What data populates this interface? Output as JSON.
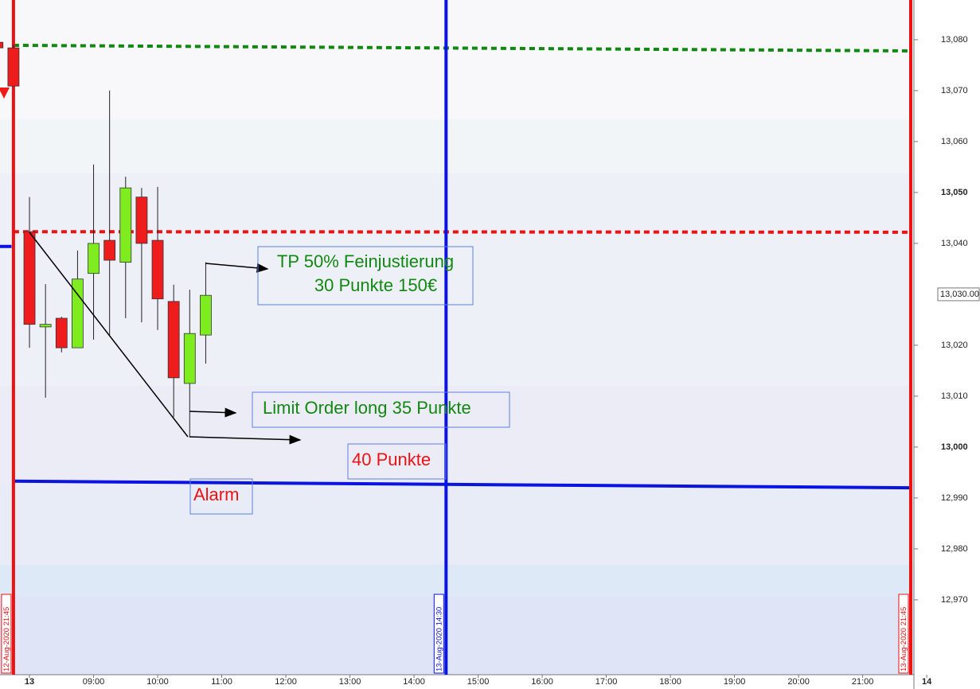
{
  "chart_data": {
    "type": "candlestick",
    "x": [
      7.5,
      7.75,
      8,
      8.25,
      8.5,
      8.75,
      9,
      9.25,
      9.5,
      9.75,
      10,
      10.25,
      10.5,
      10.75
    ],
    "open": [
      13079.5,
      13078.4,
      13042.3,
      13023.6,
      13025.3,
      13019.5,
      13034.1,
      13040.6,
      13036.3,
      13049.1,
      13040.6,
      13028.6,
      13012.5,
      13022.0
    ],
    "high": [
      13080.0,
      13079.0,
      13049.1,
      13032.0,
      13025.6,
      13038.6,
      13055.5,
      13070.0,
      13053.1,
      13050.9,
      13051.1,
      13031.9,
      13030.9,
      13036.3
    ],
    "low": [
      13078.0,
      13070.9,
      13019.5,
      13009.7,
      13018.6,
      13019.5,
      13021.1,
      13022.0,
      13025.3,
      13024.5,
      13023.0,
      13005.9,
      13001.9,
      13016.4
    ],
    "close": [
      13078.4,
      13070.9,
      13024.1,
      13024.1,
      13019.5,
      13033.0,
      13040.0,
      13036.7,
      13050.9,
      13040.0,
      13029.1,
      13013.6,
      13022.3,
      13029.8
    ],
    "up_color": "#7fec1f",
    "down_color": "#ee1c1c",
    "xlim": [
      7.54,
      21.8
    ],
    "ylim": [
      12955.3,
      13087.8
    ],
    "xticks": [
      {
        "value": 8,
        "label": "13"
      },
      {
        "value": 9,
        "label": "09:00"
      },
      {
        "value": 10,
        "label": "10:00"
      },
      {
        "value": 11,
        "label": "11:00"
      },
      {
        "value": 12,
        "label": "12:00"
      },
      {
        "value": 13,
        "label": "13:00"
      },
      {
        "value": 14,
        "label": "14:00"
      },
      {
        "value": 15,
        "label": "15:00"
      },
      {
        "value": 16,
        "label": "16:00"
      },
      {
        "value": 17,
        "label": "17:00"
      },
      {
        "value": 18,
        "label": "18:00"
      },
      {
        "value": 19,
        "label": "19:00"
      },
      {
        "value": 20,
        "label": "20:00"
      },
      {
        "value": 21,
        "label": "21:00"
      },
      {
        "value": 22,
        "label": "14"
      }
    ],
    "yticks": [
      {
        "value": 13080,
        "label": "13,080"
      },
      {
        "value": 13070,
        "label": "13,070"
      },
      {
        "value": 13060,
        "label": "13,060"
      },
      {
        "value": 13050,
        "label": "13,050"
      },
      {
        "value": 13040,
        "label": "13,040"
      },
      {
        "value": 13020,
        "label": "13,020"
      },
      {
        "value": 13010,
        "label": "13,010"
      },
      {
        "value": 13000,
        "label": "13,000"
      },
      {
        "value": 12990,
        "label": "12,990"
      },
      {
        "value": 12980,
        "label": "12,980"
      },
      {
        "value": 12970,
        "label": "12,970"
      }
    ],
    "last_price": {
      "value": 13030,
      "label": "13,030.00"
    },
    "hlines": [
      {
        "x": [
          7.75,
          21.75
        ],
        "y": [
          13078.9,
          13077.8
        ],
        "color": "#118811",
        "dashed": true
      },
      {
        "x": [
          7.75,
          21.75
        ],
        "y": [
          13042.3,
          13042.2
        ],
        "color": "#ee1111",
        "dashed": true
      },
      {
        "x": [
          7.75,
          21.75
        ],
        "y": [
          12993.3,
          12992.0
        ],
        "color": "#0a14e0",
        "dashed": false
      },
      {
        "x": [
          7.54,
          7.72
        ],
        "y": [
          13039.4,
          13039.4
        ],
        "color": "#0a14e0",
        "dashed": false
      }
    ],
    "vlines": [
      {
        "x": 7.75,
        "label": "12-Aug-2020 21:45",
        "color": "#ee1111"
      },
      {
        "x": 14.5,
        "label": "13-Aug-2020 14:30",
        "color": "#0a14e0"
      },
      {
        "x": 21.75,
        "label": "13-Aug-2020 21:45",
        "color": "#ee1111"
      }
    ],
    "annotations": [
      {
        "lines": [
          "TP 50% Feinjustierung",
          "30 Punkte 150€"
        ],
        "color": "#118811"
      },
      {
        "lines": [
          "Limit Order long 35 Punkte"
        ],
        "color": "#118811"
      },
      {
        "lines": [
          "40 Punkte"
        ],
        "color": "#ee1111"
      },
      {
        "lines": [
          "Alarm"
        ],
        "color": "#ee1111"
      }
    ]
  }
}
